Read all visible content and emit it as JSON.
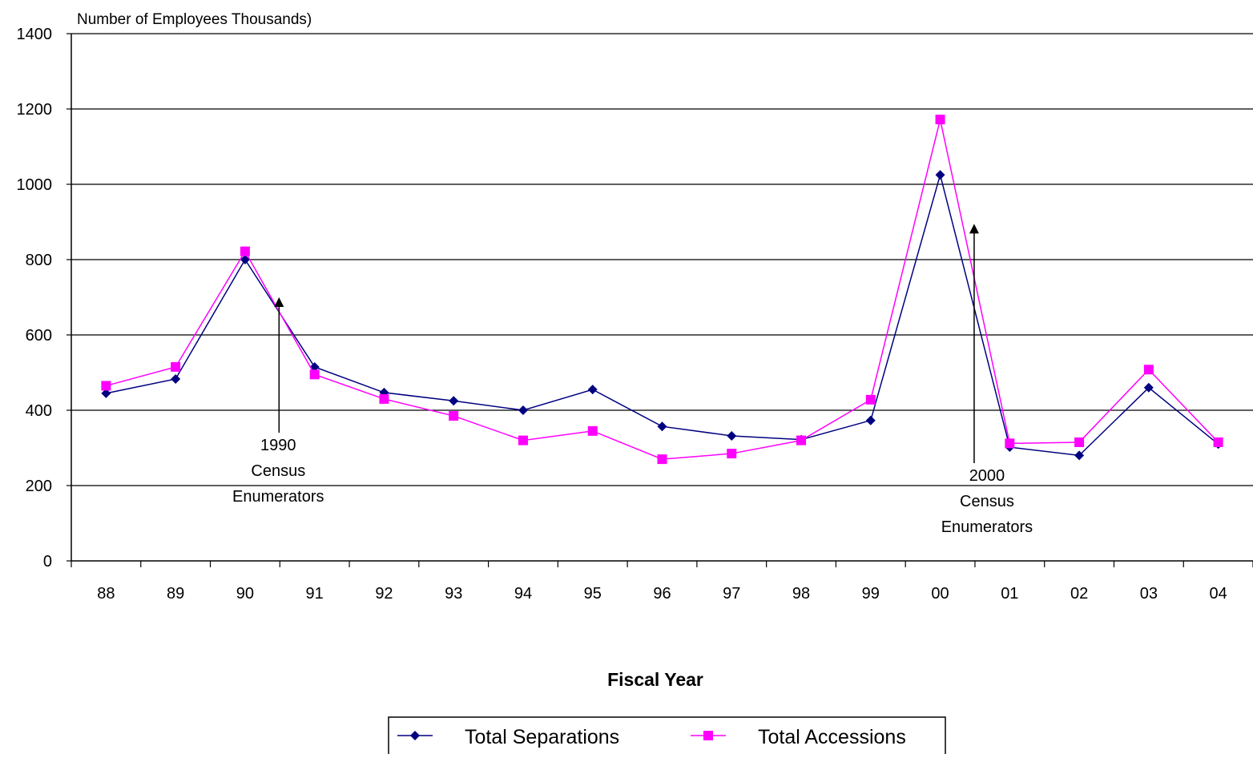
{
  "chart_data": {
    "type": "line",
    "title": "",
    "ylabel": "Number of Employees Thousands)",
    "xlabel": "Fiscal Year",
    "categories": [
      "88",
      "89",
      "90",
      "91",
      "92",
      "93",
      "94",
      "95",
      "96",
      "97",
      "98",
      "99",
      "00",
      "01",
      "02",
      "03",
      "04"
    ],
    "ylim": [
      0,
      1400
    ],
    "yticks": [
      0,
      200,
      400,
      600,
      800,
      1000,
      1200,
      1400
    ],
    "grid": true,
    "legend_position": "bottom",
    "series": [
      {
        "name": "Total Separations",
        "color": "#000080",
        "marker": "diamond",
        "values": [
          445,
          483,
          800,
          515,
          447,
          425,
          400,
          455,
          357,
          332,
          322,
          373,
          1025,
          302,
          280,
          460,
          310
        ]
      },
      {
        "name": "Total Accessions",
        "color": "#ff00ff",
        "marker": "square",
        "values": [
          465,
          515,
          822,
          495,
          430,
          385,
          320,
          345,
          270,
          285,
          320,
          428,
          1172,
          312,
          315,
          508,
          315
        ]
      }
    ],
    "annotations": [
      {
        "lines": [
          "1990",
          "Census",
          "Enumerators"
        ],
        "x_between": [
          "90",
          "91"
        ],
        "arrow_to": 700
      },
      {
        "lines": [
          "2000",
          "Census",
          "Enumerators"
        ],
        "x_between": [
          "00",
          "01"
        ],
        "arrow_to": 895
      }
    ]
  }
}
